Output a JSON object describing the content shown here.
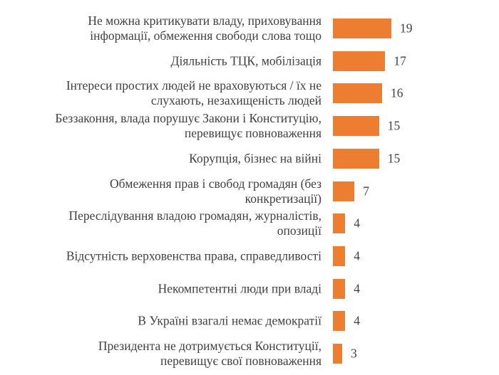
{
  "chart_data": {
    "type": "bar",
    "orientation": "horizontal",
    "title": "",
    "xlabel": "",
    "ylabel": "",
    "xlim": [
      0,
      19
    ],
    "grid": false,
    "legend": "none",
    "bar_color": "#ED7D31",
    "categories": [
      "Не можна критикувати владу, приховування\nінформації, обмеження свободи слова тощо",
      "Діяльність ТЦК, мобілізація",
      "Інтереси простих людей не враховуються / їх не\nслухають, незахищеність людей",
      "Беззаконня, влада порушує Закони і Конституцію,\nперевищує повноваження",
      "Корупція, бізнес на війні",
      "Обмеження прав і свобод громадян (без\nконкретизації)",
      "Переслідування владою громадян, журналістів,\nопозиції",
      "Відсутність верховенства права, справедливості",
      "Некомпетентні люди при владі",
      "В Україні взагалі немає демократії",
      "Президента не дотримується Конституції,\nперевищує свої повноваження"
    ],
    "values": [
      19,
      17,
      16,
      15,
      15,
      7,
      4,
      4,
      4,
      4,
      3
    ],
    "value_labels": [
      "19",
      "17",
      "16",
      "15",
      "15",
      "7",
      "4",
      "4",
      "4",
      "4",
      "3"
    ]
  }
}
